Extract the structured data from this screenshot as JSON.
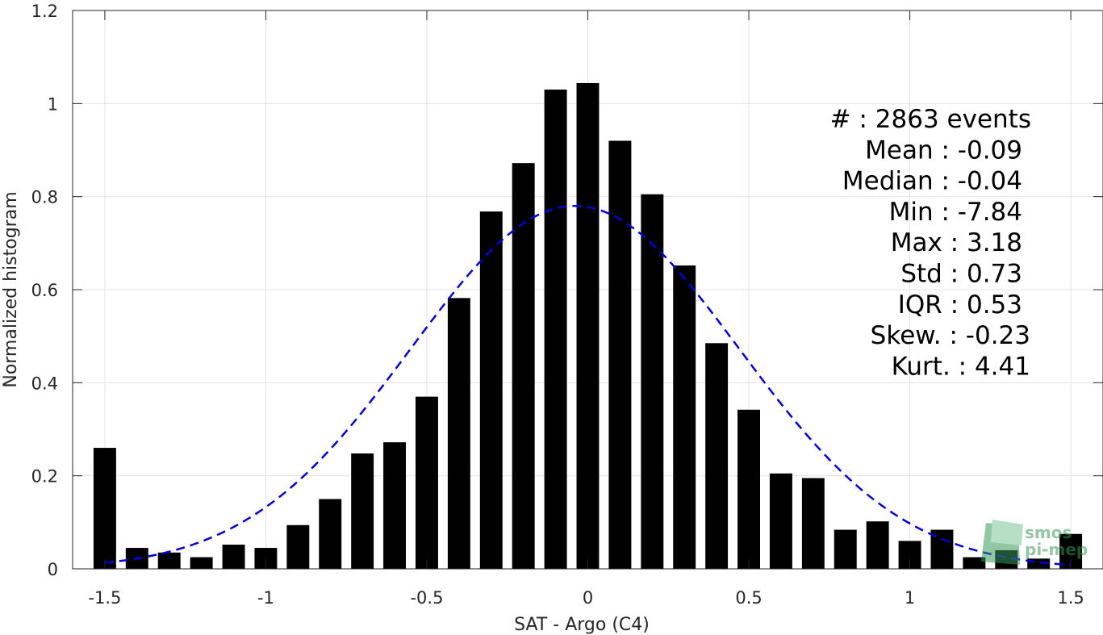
{
  "chart_data": {
    "type": "bar",
    "xlabel": "SAT - Argo (C4)",
    "ylabel": "Normalized histogram",
    "xlim": [
      -1.6,
      1.6
    ],
    "ylim": [
      0,
      1.2
    ],
    "xticks": [
      -1.5,
      -1,
      -0.5,
      0,
      0.5,
      1,
      1.5
    ],
    "xtick_labels": [
      "-1.5",
      "-1",
      "-0.5",
      "0",
      "0.5",
      "1",
      "1.5"
    ],
    "yticks": [
      0,
      0.2,
      0.4,
      0.6,
      0.8,
      1,
      1.2
    ],
    "ytick_labels": [
      "0",
      "0.2",
      "0.4",
      "0.6",
      "0.8",
      "1",
      "1.2"
    ],
    "grid": true,
    "bar_width": 0.07,
    "bar_color": "#000000",
    "bins": [
      -1.5,
      -1.4,
      -1.3,
      -1.2,
      -1.1,
      -1.0,
      -0.9,
      -0.8,
      -0.7,
      -0.6,
      -0.5,
      -0.4,
      -0.3,
      -0.2,
      -0.1,
      0.0,
      0.1,
      0.2,
      0.3,
      0.4,
      0.5,
      0.6,
      0.7,
      0.8,
      0.9,
      1.0,
      1.1,
      1.2,
      1.3,
      1.4,
      1.5
    ],
    "values": [
      0.26,
      0.045,
      0.035,
      0.025,
      0.052,
      0.045,
      0.094,
      0.15,
      0.248,
      0.272,
      0.37,
      0.582,
      0.768,
      0.872,
      1.03,
      1.044,
      0.92,
      0.805,
      0.652,
      0.485,
      0.342,
      0.205,
      0.195,
      0.084,
      0.102,
      0.06,
      0.084,
      0.025,
      0.04,
      0.022,
      0.075
    ],
    "fit": {
      "type": "normal",
      "mean": -0.04,
      "std": 0.51,
      "peak": 0.78,
      "x_range": [
        -1.5,
        1.5
      ],
      "color": "#0000dd",
      "style": "dashed"
    },
    "annotation_lines": [
      "#  : 2863 events",
      "Mean : -0.09",
      "Median : -0.04",
      "Min : -7.84",
      "Max : 3.18",
      "Std : 0.73",
      "IQR : 0.53",
      "Skew. : -0.23",
      "Kurt. : 4.41"
    ]
  },
  "logo": {
    "line1": "smos",
    "line2": "pi-mep",
    "color": "#3a9a5b"
  }
}
